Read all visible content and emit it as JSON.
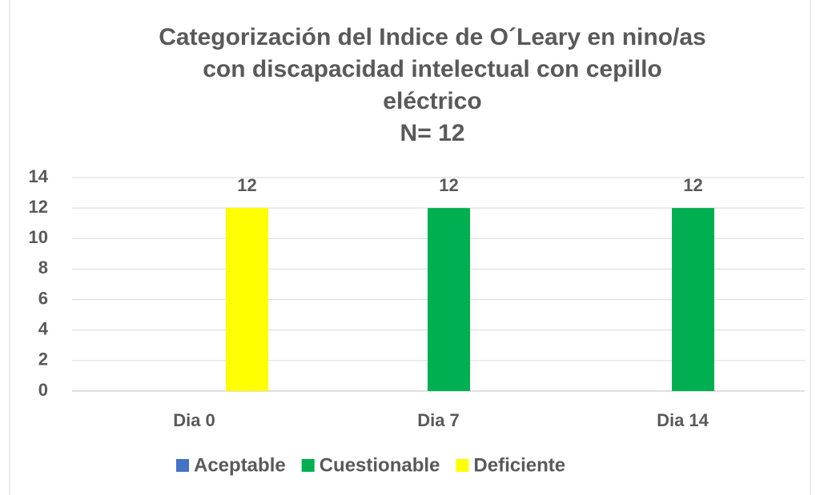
{
  "chart_data": {
    "type": "bar",
    "title": [
      "Categorización del Indice de O´Leary en nino/as",
      "con discapacidad intelectual con cepillo",
      "eléctrico"
    ],
    "subtitle": "N= 12",
    "categories": [
      "Dia 0",
      "Dia 7",
      "Dia 14"
    ],
    "series": [
      {
        "name": "Aceptable",
        "color": "#4472c4",
        "values": [
          0,
          0,
          0
        ]
      },
      {
        "name": "Cuestionable",
        "color": "#00b050",
        "values": [
          0,
          12,
          12
        ]
      },
      {
        "name": "Deficiente",
        "color": "#ffff00",
        "values": [
          12,
          0,
          0
        ]
      }
    ],
    "ylim": [
      0,
      14
    ],
    "yticks": [
      0,
      2,
      4,
      6,
      8,
      10,
      12,
      14
    ],
    "grid": true,
    "legend": "bottom"
  }
}
